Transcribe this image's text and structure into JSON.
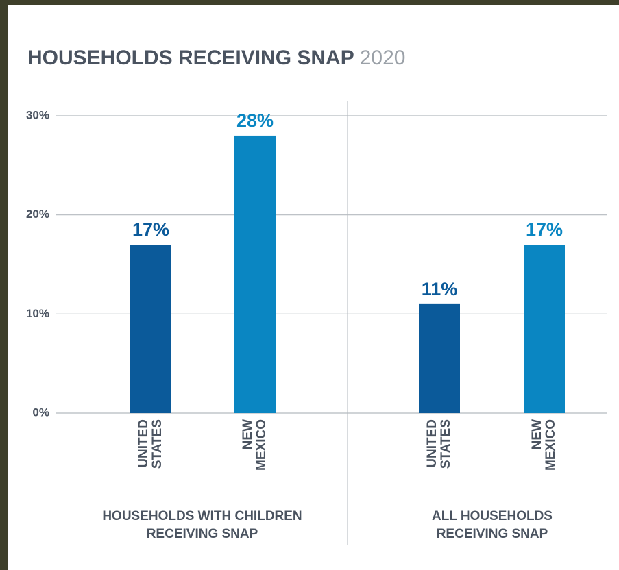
{
  "chart_data": {
    "type": "grouped-bar",
    "title": "HOUSEHOLDS RECEIVING SNAP",
    "subtitle": "2020",
    "ylim": [
      0,
      30
    ],
    "yticks": [
      {
        "value": 0,
        "label": "0%"
      },
      {
        "value": 10,
        "label": "10%"
      },
      {
        "value": 20,
        "label": "20%"
      },
      {
        "value": 30,
        "label": "30%"
      }
    ],
    "grid": true,
    "colors": [
      "#0b5a9a",
      "#0a86c2"
    ],
    "groups": [
      {
        "name": "HOUSEHOLDS WITH CHILDREN RECEIVING SNAP",
        "categories": [
          [
            "UNITED",
            "STATES"
          ],
          [
            "NEW",
            "MEXICO"
          ]
        ],
        "values": [
          17,
          28
        ],
        "value_labels": [
          "17%",
          "28%"
        ]
      },
      {
        "name": "ALL HOUSEHOLDS RECEIVING SNAP",
        "categories": [
          [
            "UNITED",
            "STATES"
          ],
          [
            "NEW",
            "MEXICO"
          ]
        ],
        "values": [
          11,
          17
        ],
        "value_labels": [
          "11%",
          "17%"
        ]
      }
    ]
  }
}
